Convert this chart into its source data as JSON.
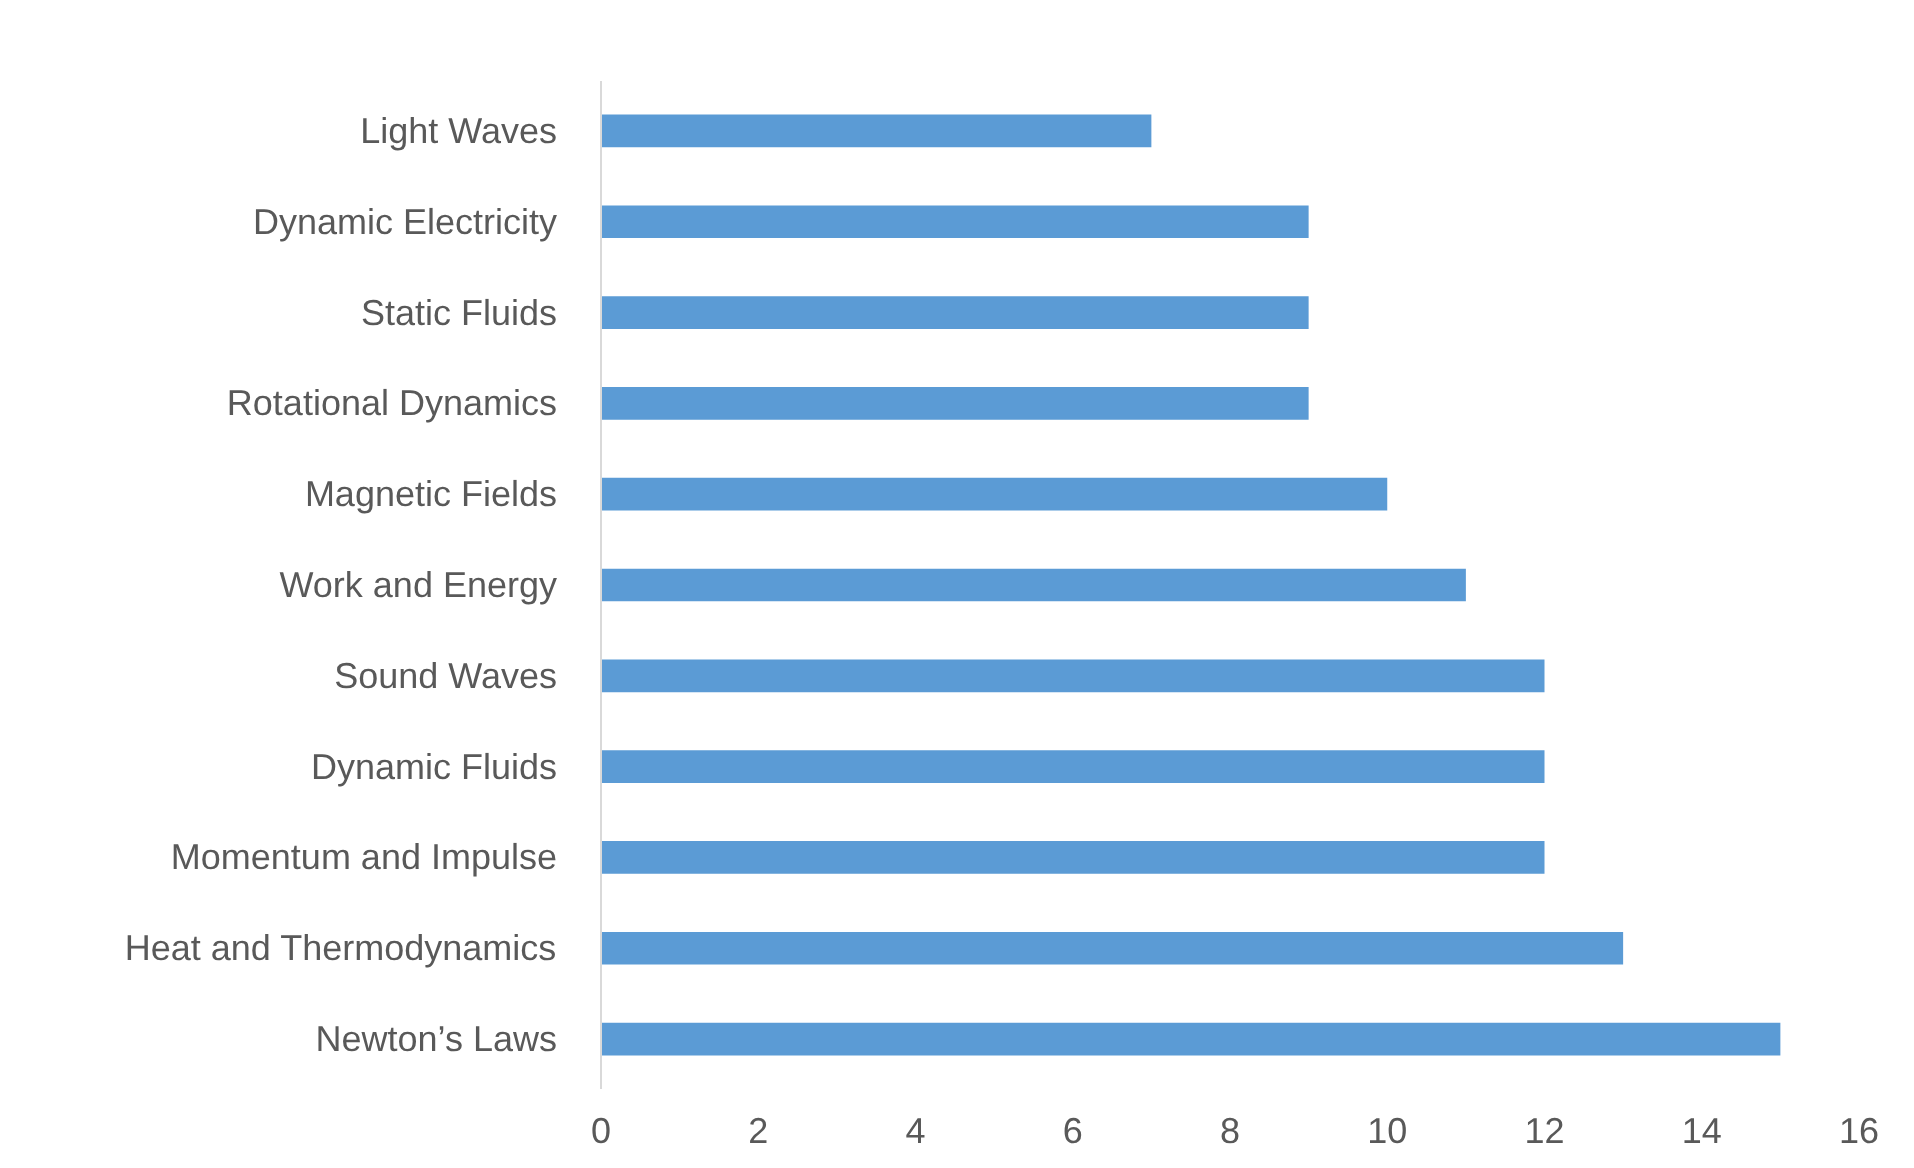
{
  "chart_data": {
    "type": "bar",
    "orientation": "horizontal",
    "categories": [
      "Light Waves",
      "Dynamic Electricity",
      "Static Fluids",
      "Rotational Dynamics",
      "Magnetic Fields",
      "Work and Energy",
      "Sound Waves",
      "Dynamic Fluids",
      "Momentum and Impulse",
      "Heat and Thermodynamics",
      "Newton’s Laws"
    ],
    "values": [
      7,
      9,
      9,
      9,
      10,
      11,
      12,
      12,
      12,
      13,
      15
    ],
    "color": "#5b9bd5",
    "xlim": [
      0,
      16
    ],
    "xticks": [
      0,
      2,
      4,
      6,
      8,
      10,
      12,
      14,
      16
    ],
    "grid": false
  }
}
